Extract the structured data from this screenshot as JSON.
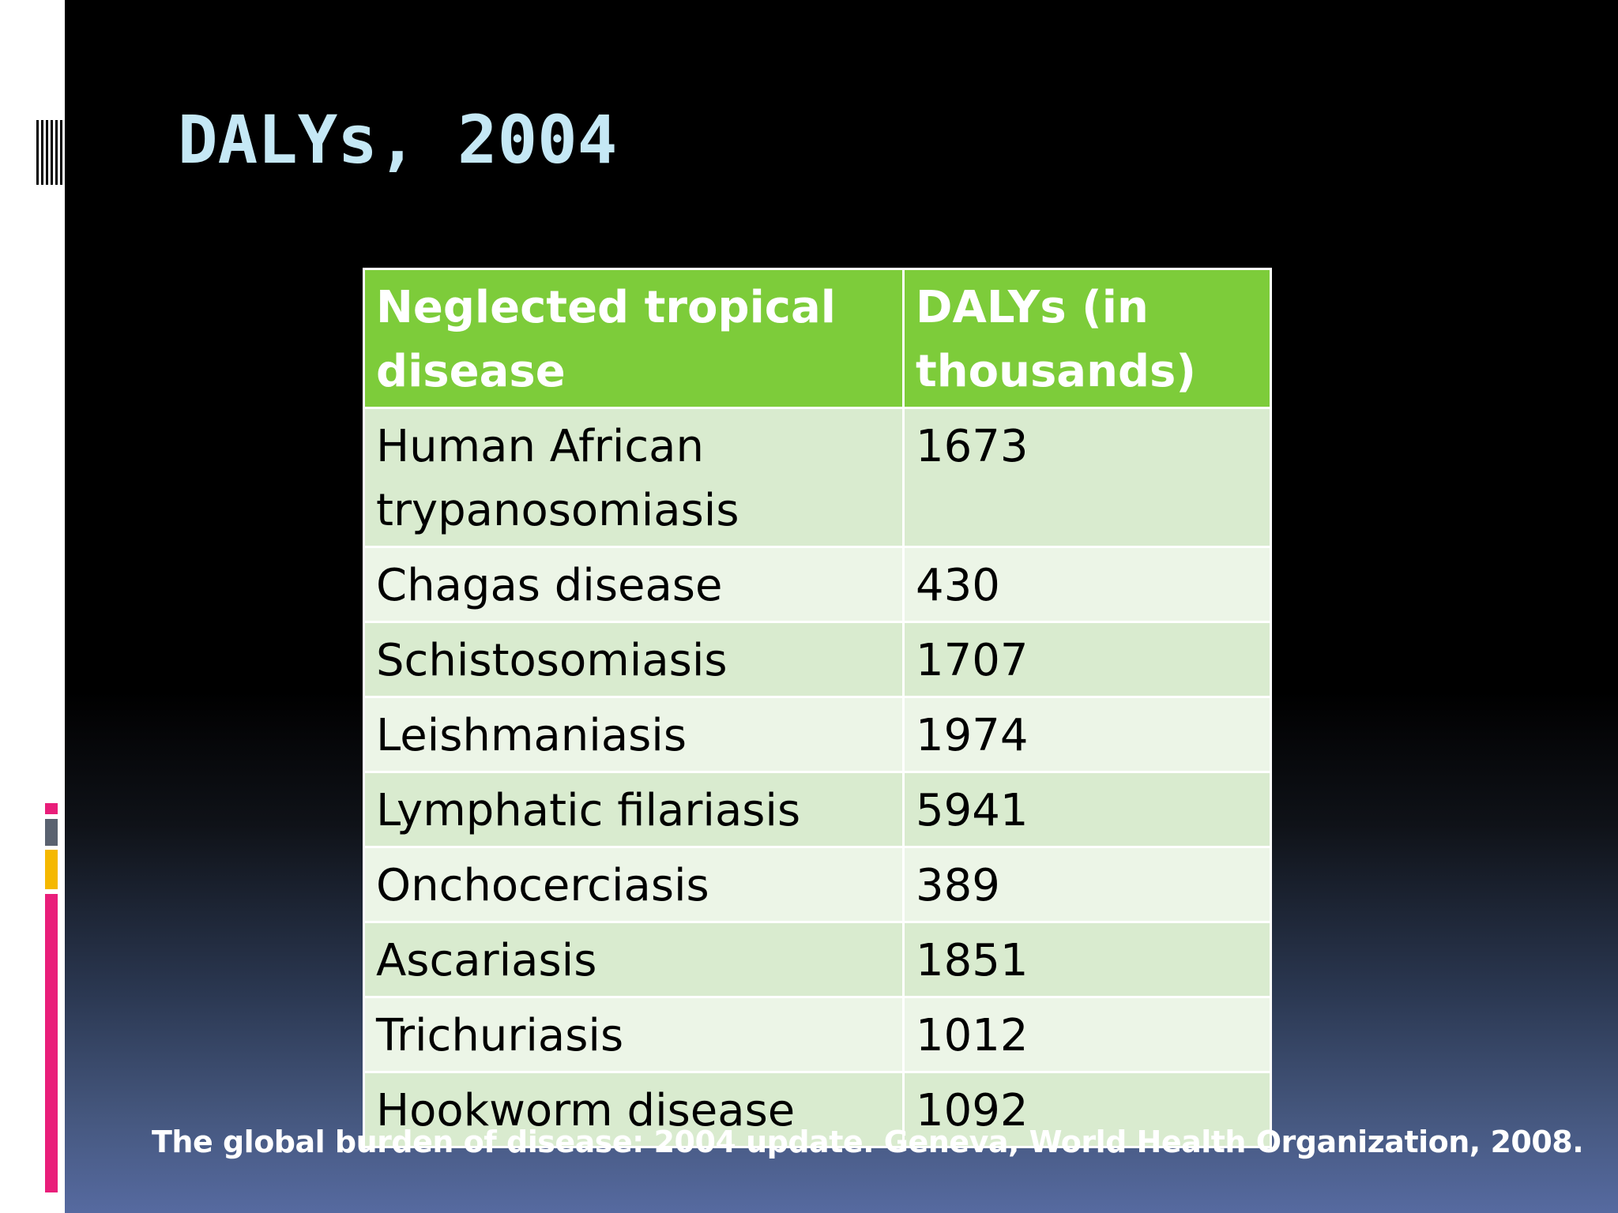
{
  "slide": {
    "title": "DALYs, 2004",
    "table": {
      "headers": [
        "Neglected tropical disease",
        "DALYs (in thousands)"
      ],
      "rows": [
        {
          "disease": "Human African trypanosomiasis",
          "dalys": "1673"
        },
        {
          "disease": "Chagas disease",
          "dalys": "430"
        },
        {
          "disease": "Schistosomiasis",
          "dalys": "1707"
        },
        {
          "disease": "Leishmaniasis",
          "dalys": "1974"
        },
        {
          "disease": "Lymphatic filariasis",
          "dalys": "5941"
        },
        {
          "disease": "Onchocerciasis",
          "dalys": "389"
        },
        {
          "disease": "Ascariasis",
          "dalys": "1851"
        },
        {
          "disease": "Trichuriasis",
          "dalys": "1012"
        },
        {
          "disease": "Hookworm disease",
          "dalys": "1092"
        }
      ]
    },
    "citation": "The global burden of disease: 2004 update. Geneva, World Health Organization, 2008."
  },
  "colors": {
    "title": "#c5e8f5",
    "header_bg": "#7dcc3a",
    "row_dark": "#d9ebcf",
    "row_light": "#ecf5e7",
    "accent_pink": "#e91e7a",
    "accent_orange": "#f5b800",
    "accent_gray": "#5a6270"
  }
}
